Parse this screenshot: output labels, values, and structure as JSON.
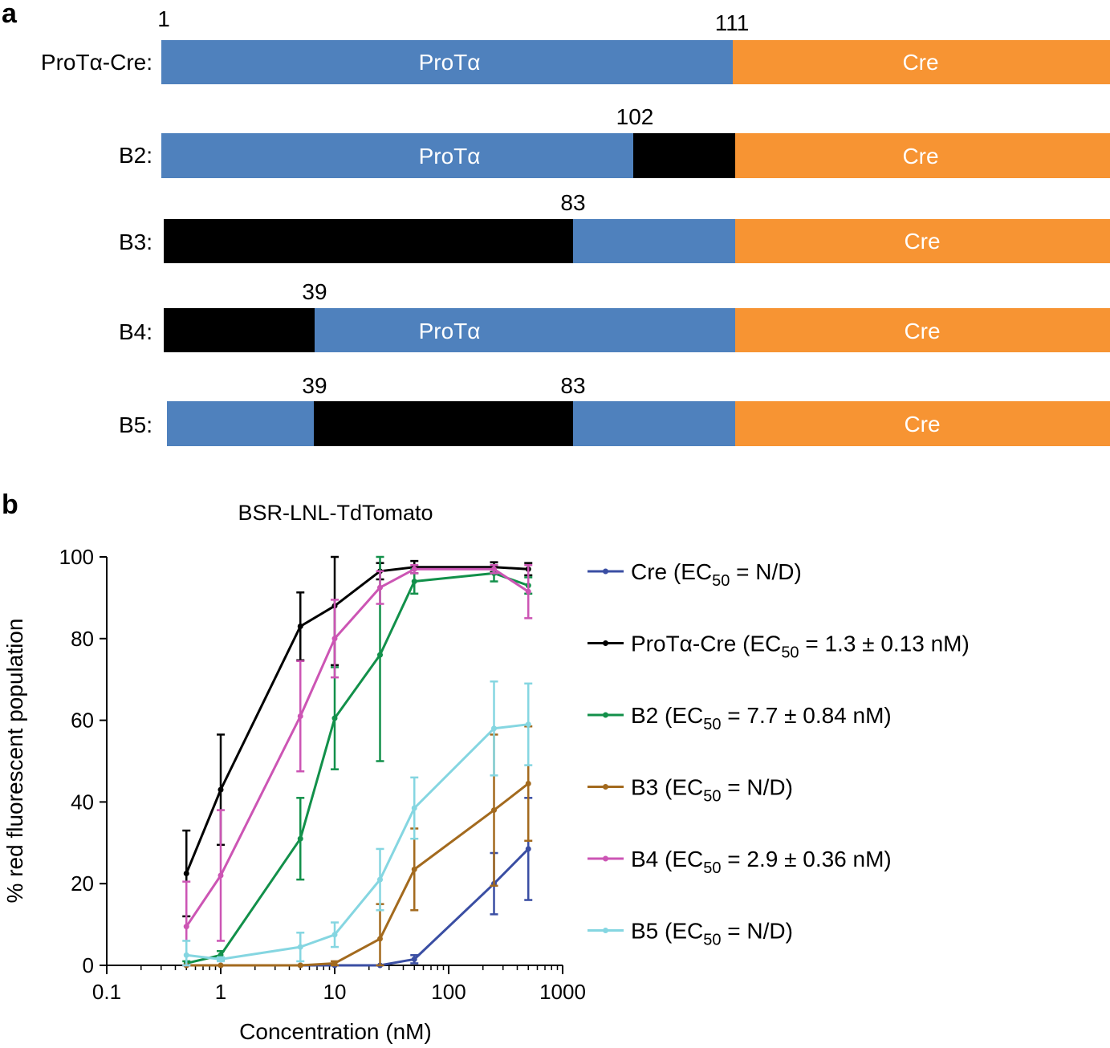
{
  "panel_a": {
    "label": "a",
    "segment_text": {
      "prota": "ProTα",
      "cre": "Cre"
    },
    "colors": {
      "prota": "#4f81bd",
      "cre": "#f79433",
      "deletion": "#000000"
    },
    "constructs": [
      {
        "name": "ProTα-Cre:",
        "numbers": [
          "1",
          "111"
        ],
        "segments": [
          "prota-labeled",
          "cre"
        ]
      },
      {
        "name": "B2:",
        "numbers": [
          "102"
        ],
        "segments": [
          "prota-labeled",
          "deletion",
          "cre"
        ]
      },
      {
        "name": "B3:",
        "numbers": [
          "83"
        ],
        "segments": [
          "deletion",
          "prota",
          "cre"
        ]
      },
      {
        "name": "B4:",
        "numbers": [
          "39"
        ],
        "segments": [
          "deletion",
          "prota-labeled",
          "cre"
        ]
      },
      {
        "name": "B5:",
        "numbers": [
          "39",
          "83"
        ],
        "segments": [
          "prota",
          "deletion",
          "prota",
          "cre"
        ]
      }
    ]
  },
  "panel_b": {
    "label": "b"
  },
  "chart_data": {
    "type": "line",
    "title": "BSR-LNL-TdTomato",
    "xlabel": "Concentration (nM)",
    "ylabel": "% red fluorescent population",
    "xscale": "log",
    "xlim": [
      0.1,
      1000
    ],
    "ylim": [
      0,
      100
    ],
    "xticks": [
      0.1,
      1,
      10,
      100,
      1000
    ],
    "xtick_labels": [
      "0.1",
      "1",
      "10",
      "100",
      "1000"
    ],
    "yticks": [
      0,
      20,
      40,
      60,
      80,
      100
    ],
    "ytick_labels": [
      "0",
      "20",
      "40",
      "60",
      "80",
      "100"
    ],
    "legend_position": "right",
    "x": [
      0.5,
      1,
      5,
      10,
      25,
      50,
      250,
      500
    ],
    "series": [
      {
        "name": "Cre",
        "legend_prefix": "Cre (EC",
        "legend_sub": "50",
        "legend_suffix": " = N/D)",
        "color": "#3a4ea3",
        "values": [
          0,
          0,
          0,
          0,
          0,
          1.5,
          20,
          28.5
        ],
        "errors": [
          0,
          0,
          0,
          0,
          0,
          1,
          7.5,
          12.5
        ]
      },
      {
        "name": "ProTα-Cre",
        "legend_prefix": "ProTα-Cre (EC",
        "legend_sub": "50",
        "legend_suffix": " = 1.3 ± 0.13 nM)",
        "color": "#000000",
        "values": [
          22.5,
          43,
          83,
          88,
          96.5,
          97.5,
          97.5,
          97
        ],
        "errors": [
          10.5,
          13.5,
          8.3,
          14.5,
          2,
          1.5,
          1.2,
          1.5
        ]
      },
      {
        "name": "B2",
        "legend_prefix": "B2 (EC",
        "legend_sub": "50",
        "legend_suffix": " = 7.7 ± 0.84 nM)",
        "color": "#12904a",
        "values": [
          0.5,
          2.5,
          31,
          60.5,
          76,
          94,
          96,
          93
        ],
        "errors": [
          0.5,
          1,
          10,
          12.5,
          26,
          3,
          2,
          2
        ]
      },
      {
        "name": "B3",
        "legend_prefix": "B3 (EC",
        "legend_sub": "50",
        "legend_suffix": " = N/D)",
        "color": "#a36a1e",
        "values": [
          0,
          0,
          0,
          0.5,
          6.5,
          23.5,
          38,
          44.5
        ],
        "errors": [
          0,
          0,
          0,
          0.5,
          8.5,
          10,
          18.5,
          14
        ]
      },
      {
        "name": "B4",
        "legend_prefix": "B4 (EC",
        "legend_sub": "50",
        "legend_suffix": " = 2.9 ± 0.36 nM)",
        "color": "#cc55b4",
        "values": [
          9.5,
          22,
          61,
          80,
          92.5,
          97,
          97,
          91.5
        ],
        "errors": [
          11,
          16,
          13.5,
          9.5,
          4,
          1,
          1,
          6.5
        ]
      },
      {
        "name": "B5",
        "legend_prefix": "B5 (EC",
        "legend_sub": "50",
        "legend_suffix": " = N/D)",
        "color": "#85d6e1",
        "values": [
          2.5,
          1.5,
          4.5,
          7.5,
          21,
          38.5,
          58,
          59
        ],
        "errors": [
          3.5,
          0.5,
          3.5,
          3,
          7.5,
          7.5,
          11.5,
          10
        ]
      }
    ]
  }
}
